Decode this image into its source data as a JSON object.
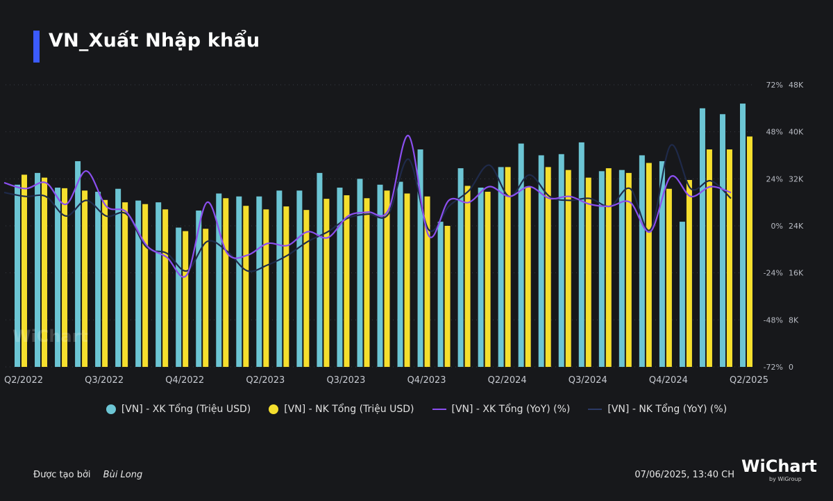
{
  "title": "VN_Xuất Nhập khẩu",
  "legend": {
    "xk_value": "[VN] - XK Tổng (Triệu USD)",
    "nk_value": "[VN] - NK Tổng (Triệu USD)",
    "xk_yoy": "[VN] - XK Tổng (YoY) (%)",
    "nk_yoy": "[VN] - NK Tổng (YoY) (%)"
  },
  "footer": {
    "created_by_label": "Được tạo bởi",
    "author": "Bùi Long",
    "timestamp": "07/06/2025, 13:40 CH"
  },
  "brand": {
    "name": "WiChart",
    "sub": "by WiGroup"
  },
  "watermark": "WiChart",
  "colors": {
    "xk_bar": "#6cc5d4",
    "nk_bar": "#f5df2e",
    "xk_line": "#8b4ff0",
    "nk_line": "#1f2a4a"
  },
  "chart_data": {
    "type": "bar",
    "x_tick_labels": [
      "Q2/2022",
      "Q3/2022",
      "Q4/2022",
      "Q2/2023",
      "Q3/2023",
      "Q4/2023",
      "Q2/2024",
      "Q3/2024",
      "Q4/2024",
      "Q2/2025"
    ],
    "x_tick_index": [
      0,
      4,
      8,
      12,
      16,
      20,
      24,
      28,
      32,
      36
    ],
    "y_right_value_ticks": [
      "0",
      "8K",
      "16K",
      "24K",
      "32K",
      "40K",
      "48K"
    ],
    "y_right_value_range": [
      0,
      48000
    ],
    "y_pct_ticks": [
      "-72%",
      "-48%",
      "-24%",
      "0%",
      "24%",
      "48%",
      "72%"
    ],
    "y_pct_range": [
      -72,
      72
    ],
    "series": [
      {
        "name": "[VN] - XK Tổng (Triệu USD)",
        "kind": "bar",
        "values": [
          31000,
          33000,
          30500,
          35000,
          29800,
          30300,
          28300,
          28000,
          23700,
          26600,
          29500,
          29000,
          29000,
          30000,
          30000,
          33000,
          30500,
          32000,
          31000,
          31500,
          37000,
          24700,
          33800,
          30500,
          34000,
          38000,
          36000,
          36200,
          38200,
          33300,
          33500,
          36000,
          35000,
          24700,
          44000,
          43000,
          44800
        ]
      },
      {
        "name": "[VN] - NK Tổng (Triệu USD)",
        "kind": "bar",
        "values": [
          32700,
          32200,
          30400,
          30000,
          28400,
          28000,
          27700,
          26800,
          23100,
          23500,
          28700,
          27400,
          26800,
          27300,
          26700,
          28600,
          29200,
          28700,
          30000,
          29500,
          29000,
          24000,
          30800,
          29800,
          34000,
          30700,
          34000,
          33500,
          32200,
          33800,
          33000,
          34700,
          30300,
          31800,
          37000,
          37000,
          39200
        ]
      },
      {
        "name": "[VN] - XK Tổng (YoY) (%)",
        "kind": "line",
        "values": [
          22,
          19,
          22,
          11,
          28,
          10,
          7,
          -10,
          -16,
          -25,
          12,
          -14,
          -15,
          -9,
          -10,
          -3,
          -6,
          5,
          7,
          8,
          46,
          -5,
          13,
          12,
          20,
          15,
          20,
          14,
          15,
          11,
          10,
          12,
          -3,
          25,
          15,
          20,
          17
        ]
      },
      {
        "name": "[VN] - NK Tổng (YoY) (%)",
        "kind": "line",
        "values": [
          17,
          15,
          15,
          5,
          13,
          5,
          6,
          -11,
          -14,
          -23,
          -8,
          -13,
          -23,
          -20,
          -15,
          -8,
          -3,
          4,
          6,
          6,
          34,
          -2,
          10,
          18,
          31,
          15,
          26,
          15,
          13,
          14,
          10,
          19,
          -2,
          41,
          19,
          23,
          14
        ]
      }
    ]
  }
}
